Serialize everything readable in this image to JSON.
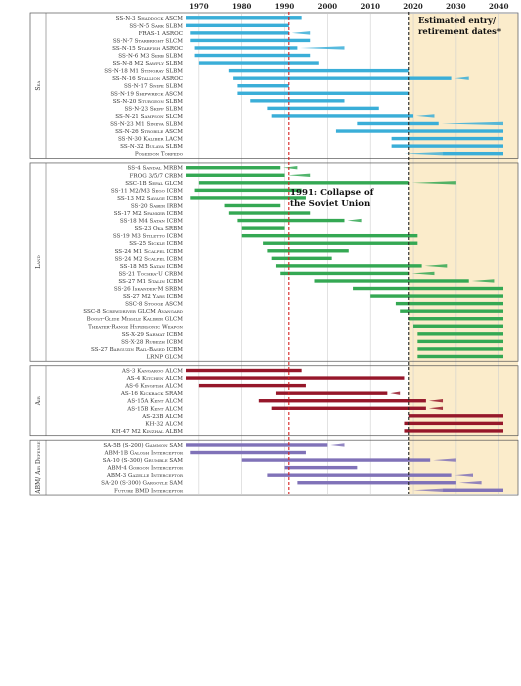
{
  "chart_data": {
    "type": "bar",
    "subtype": "timeline-gantt",
    "title": "",
    "xlabel": "",
    "ylabel": "",
    "xlim": [
      1967,
      2041
    ],
    "x_ticks": [
      1970,
      1980,
      1990,
      2000,
      2010,
      2020,
      2030,
      2040
    ],
    "grid": true,
    "colors": {
      "Sea": "#3aaed8",
      "Land": "#34a853",
      "Air": "#96172a",
      "ABM/Air Defense": "#8072b8",
      "estimate_band": "#fbeccb",
      "collapse_line": "#d62020",
      "estimate_line": "#222222"
    },
    "annotations": [
      {
        "text": "1991: Collapse of the Soviet Union",
        "x": 1991
      },
      {
        "text": "Estimated entry/ retirement dates*",
        "x": 2019,
        "band_to": 2041
      }
    ],
    "groups": [
      {
        "name": "Sea",
        "systems": [
          {
            "name": "SS-N-3 Shaddock ASCM",
            "start": 1962,
            "end": 1994
          },
          {
            "name": "SS-N-5 Sark SLBM",
            "start": 1963,
            "end": 1991
          },
          {
            "name": "FRAS-1 ASROC",
            "start": 1968,
            "end": 1991,
            "est_end": 1996
          },
          {
            "name": "SS-N-7 Starbright SLCM",
            "start": 1968,
            "end": 1996
          },
          {
            "name": "SS-N-15 Starfish ASROC",
            "start": 1969,
            "end": 1993,
            "est_end": 2004
          },
          {
            "name": "SS-N-6 M3 Serb SLBM",
            "start": 1969,
            "end": 1996
          },
          {
            "name": "SS-N-8 M2 Sawfly SLBM",
            "start": 1970,
            "end": 1998
          },
          {
            "name": "SS-N-18 M1 Stingray SLBM",
            "start": 1977,
            "end": 2019
          },
          {
            "name": "SS-N-16 Stallion ASROC",
            "start": 1978,
            "end": 2029,
            "est_end": 2033
          },
          {
            "name": "SS-N-17 Snipe SLBM",
            "start": 1979,
            "end": 1991
          },
          {
            "name": "SS-N-19 Shipwreck ASCM",
            "start": 1979,
            "end": 2019
          },
          {
            "name": "SS-N-20 Sturgeon SLBM",
            "start": 1982,
            "end": 2004
          },
          {
            "name": "SS-N-23 Skiff SLBM",
            "start": 1986,
            "end": 2012
          },
          {
            "name": "SS-N-21 Sampson SLCM",
            "start": 1987,
            "end": 2020,
            "est_end": 2025
          },
          {
            "name": "SS-N-23 M1 Sineva SLBM",
            "start": 2007,
            "end": 2026,
            "est_end": 2041
          },
          {
            "name": "SS-N-26 Strobile ASCM",
            "start": 2002,
            "end": 2041
          },
          {
            "name": "SS-N-30 Kaliber LACM",
            "start": 2015,
            "end": 2041
          },
          {
            "name": "SS-N-32 Bulava SLBM",
            "start": 2015,
            "end": 2041
          },
          {
            "name": "Poseidon Torpedo",
            "start": 2027,
            "end": 2041,
            "est_start": 2018
          }
        ]
      },
      {
        "name": "Land",
        "systems": [
          {
            "name": "SS-4 Sandal MRBM",
            "start": 1959,
            "end": 1989,
            "est_end": 1993
          },
          {
            "name": "FROG 3/5/7 CRBM",
            "start": 1965,
            "end": 1990,
            "est_end": 1996
          },
          {
            "name": "SSC-1B Sepal GLCM",
            "start": 1970,
            "end": 2019,
            "est_end": 2030
          },
          {
            "name": "SS-11 M2/M3 Sego ICBM",
            "start": 1969,
            "end": 1994
          },
          {
            "name": "SS-13 M2 Savage ICBM",
            "start": 1968,
            "end": 1995
          },
          {
            "name": "SS-20 Saber IRBM",
            "start": 1976,
            "end": 1989
          },
          {
            "name": "SS-17 M2 Spanker ICBM",
            "start": 1977,
            "end": 1996
          },
          {
            "name": "SS-18 M4 Satan ICBM",
            "start": 1979,
            "end": 2004,
            "est_end": 2008
          },
          {
            "name": "SS-23 Oka SRBM",
            "start": 1980,
            "end": 1990
          },
          {
            "name": "SS-19 M3 Stiletto ICBM",
            "start": 1980,
            "end": 2021
          },
          {
            "name": "SS-25 Sickle ICBM",
            "start": 1985,
            "end": 2021
          },
          {
            "name": "SS-24 M1 Scalpel ICBM",
            "start": 1986,
            "end": 2005
          },
          {
            "name": "SS-24 M2 Scalpel ICBM",
            "start": 1987,
            "end": 2001
          },
          {
            "name": "SS-18 M5 Satan ICBM",
            "start": 1988,
            "end": 2022,
            "est_end": 2028
          },
          {
            "name": "SS-21 Tochka-U CRBM",
            "start": 1989,
            "end": 2019,
            "est_end": 2025
          },
          {
            "name": "SS-27 M1 Stalin ICBM",
            "start": 1997,
            "end": 2033,
            "est_end": 2039
          },
          {
            "name": "SS-26 Iskander-M SRBM",
            "start": 2006,
            "end": 2041
          },
          {
            "name": "SS-27 M2 Yars ICBM",
            "start": 2010,
            "end": 2041
          },
          {
            "name": "SSC-8 Stooge ASCM",
            "start": 2016,
            "end": 2041
          },
          {
            "name": "SSC-8 Screwdriver GLCM Avangard",
            "start": 2017,
            "end": 2041
          },
          {
            "name": "Boost-Glide Missile Kaliber GLCM",
            "start": 2019,
            "end": 2041
          },
          {
            "name": "Theater-Range Hypersonic Weapon",
            "start": 2020,
            "end": 2041
          },
          {
            "name": "SS-X-29 Sarmat ICBM",
            "start": 2021,
            "end": 2041
          },
          {
            "name": "SS-X-28 Rubezh ICBM",
            "start": 2021,
            "end": 2041
          },
          {
            "name": "SS-27 Barguzin Rail-Based ICBM",
            "start": 2021,
            "end": 2041
          },
          {
            "name": "LRNP GLCM",
            "start": 2021,
            "end": 2041
          }
        ]
      },
      {
        "name": "Air",
        "systems": [
          {
            "name": "AS-3 Kangaroo ALCM",
            "start": 1960,
            "end": 1994
          },
          {
            "name": "AS-4 Kitchen ALCM",
            "start": 1962,
            "end": 2018
          },
          {
            "name": "AS-6 Kingfish ALCM",
            "start": 1970,
            "end": 1995
          },
          {
            "name": "AS-16 Kickback SRAM",
            "start": 1988,
            "end": 2014,
            "est_end": 2017
          },
          {
            "name": "AS-15A Kent ALCM",
            "start": 1984,
            "end": 2023,
            "est_end": 2027
          },
          {
            "name": "AS-15B Kent ALCM",
            "start": 1987,
            "end": 2023,
            "est_end": 2027
          },
          {
            "name": "AS-23B ALCM",
            "start": 2019,
            "end": 2041
          },
          {
            "name": "KH-32 ALCM",
            "start": 2018,
            "end": 2041
          },
          {
            "name": "KH-47 M2 Kinzhal ALBM",
            "start": 2018,
            "end": 2041
          }
        ]
      },
      {
        "name": "ABM/ Air Defense",
        "systems": [
          {
            "name": "SA-5B (S-200) Gammon SAM",
            "start": 1967,
            "end": 2000,
            "est_end": 2004
          },
          {
            "name": "ABM-1B Galosh Interceptor",
            "start": 1968,
            "end": 1995
          },
          {
            "name": "SA-10 (S-300) Grumble SAM",
            "start": 1980,
            "end": 2024,
            "est_end": 2030
          },
          {
            "name": "ABM-4 Gorgon Interceptor",
            "start": 1990,
            "end": 2007
          },
          {
            "name": "ABM-3 Gazelle Interceptor",
            "start": 1986,
            "end": 2029,
            "est_end": 2034
          },
          {
            "name": "SA-20 (S-300) Gargoyle SAM",
            "start": 1993,
            "end": 2030,
            "est_end": 2036
          },
          {
            "name": "Future BMD Interceptor",
            "start": 2027,
            "end": 2041,
            "est_start": 2020
          }
        ]
      }
    ]
  }
}
